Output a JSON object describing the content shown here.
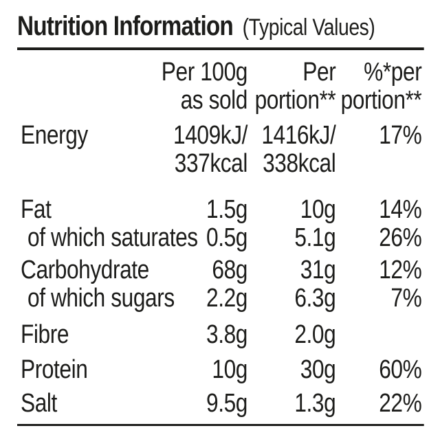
{
  "title": {
    "main": "Nutrition Information",
    "suffix": "(Typical Values)"
  },
  "table": {
    "header": {
      "per_100g": {
        "line1": "Per 100g",
        "line2": "as sold"
      },
      "per_portion": {
        "line1": "Per",
        "line2": "portion**"
      },
      "pct_per_portion": {
        "line1": "%*per",
        "line2": "portion**"
      }
    },
    "rows": [
      {
        "label": "Energy",
        "per_100g_line1": "1409kJ/",
        "per_100g_line2": "337kcal",
        "per_portion_line1": "1416kJ/",
        "per_portion_line2": "338kcal",
        "pct_per_portion": "17%"
      },
      {
        "label": "Fat",
        "per_100g": "1.5g",
        "per_portion": "10g",
        "pct_per_portion": "14%"
      },
      {
        "label": "of which saturates",
        "per_100g": "0.5g",
        "per_portion": "5.1g",
        "pct_per_portion": "26%"
      },
      {
        "label": "Carbohydrate",
        "per_100g": "68g",
        "per_portion": "31g",
        "pct_per_portion": "12%"
      },
      {
        "label": "of which sugars",
        "per_100g": "2.2g",
        "per_portion": "6.3g",
        "pct_per_portion": "7%"
      },
      {
        "label": "Fibre",
        "per_100g": "3.8g",
        "per_portion": "2.0g",
        "pct_per_portion": ""
      },
      {
        "label": "Protein",
        "per_100g": "10g",
        "per_portion": "30g",
        "pct_per_portion": "60%"
      },
      {
        "label": "Salt",
        "per_100g": "9.5g",
        "per_portion": "1.3g",
        "pct_per_portion": "22%"
      }
    ]
  },
  "colors": {
    "text": "#1d1d1b",
    "background": "#ffffff",
    "rule": "#1d1d1b"
  }
}
